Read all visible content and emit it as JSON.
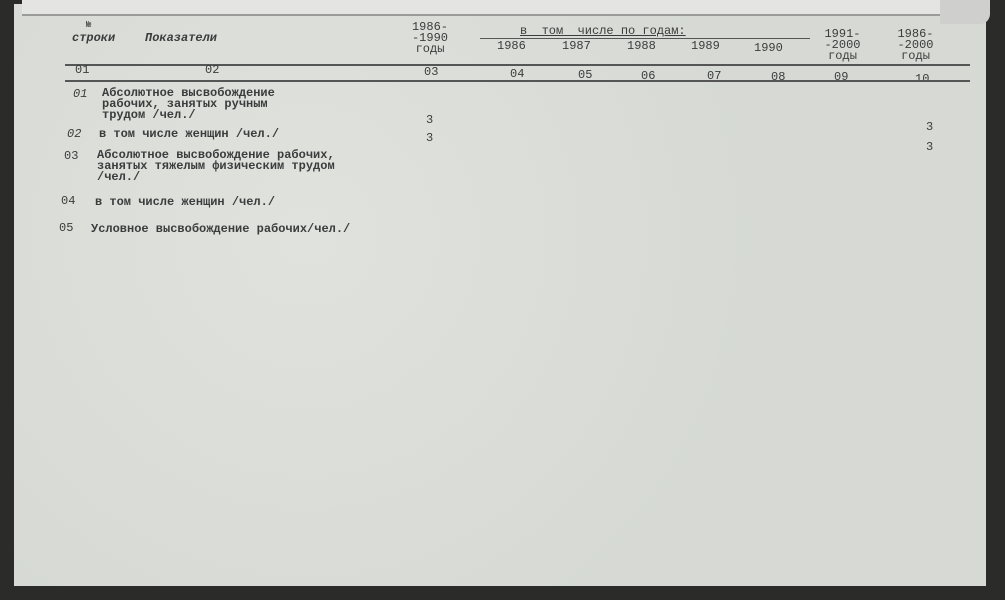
{
  "header": {
    "row_no_symbol": "№",
    "row_no_label": "строки",
    "indicators_label": "Показатели",
    "col_1986_1990": "1986-\n-1990\nгоды",
    "by_years_label": "в  том  числе по годам:",
    "years": [
      "1986",
      "1987",
      "1988",
      "1989",
      "1990"
    ],
    "col_1991_2000": "1991-\n-2000\nгоды",
    "col_1986_2000": "1986-\n-2000\nгоды"
  },
  "column_numbers": [
    "01",
    "02",
    "03",
    "04",
    "05",
    "06",
    "07",
    "08",
    "09",
    "10"
  ],
  "rows": [
    {
      "no": "01",
      "label": "Абсолютное высвобождение\nрабочих, занятых ручным\nтрудом /чел./",
      "v03": "3"
    },
    {
      "no": "02",
      "label": "в том числе женщин /чел./",
      "v03": "3"
    },
    {
      "no": "03",
      "label": "Абсолютное высвобождение рабочих,\nзанятых тяжелым физическим трудом\n/чел./"
    },
    {
      "no": "04",
      "label": "в том числе женщин /чел./"
    },
    {
      "no": "05",
      "label": "Условное высвобождение рабочих/чел./"
    }
  ],
  "col10_values": [
    "3",
    "3"
  ]
}
